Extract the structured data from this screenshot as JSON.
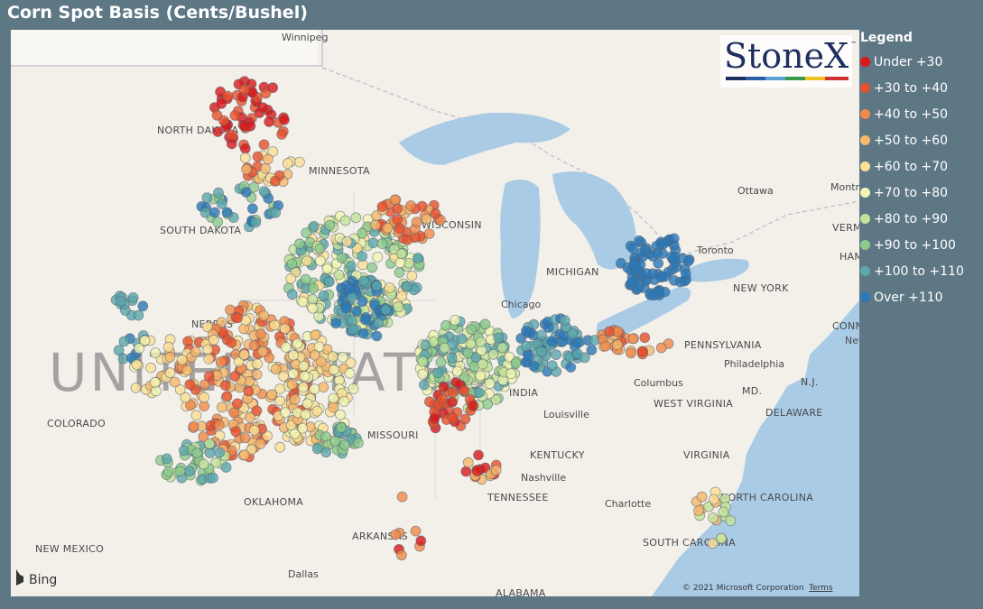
{
  "title": "Corn Spot Basis (Cents/Bushel)",
  "legend": {
    "title": "Legend",
    "items": [
      {
        "label": "Under +30",
        "color": "#d7191c"
      },
      {
        "label": "+30 to +40",
        "color": "#e8502c"
      },
      {
        "label": "+40 to +50",
        "color": "#f08a4b"
      },
      {
        "label": "+50 to +60",
        "color": "#f6b86b"
      },
      {
        "label": "+60 to +70",
        "color": "#fbe096"
      },
      {
        "label": "+70 to +80",
        "color": "#f3f5b2"
      },
      {
        "label": "+80 to +90",
        "color": "#c4e39a"
      },
      {
        "label": "+90 to +100",
        "color": "#8ccb8c"
      },
      {
        "label": "+100 to +110",
        "color": "#5ba8ac"
      },
      {
        "label": "Over +110",
        "color": "#2b78b8"
      }
    ]
  },
  "logo": {
    "text": "StoneX",
    "trademark": "™"
  },
  "map_labels": [
    "Winnipeg",
    "NORTH DAKOTA",
    "MINNESOTA",
    "SOUTH DAKOTA",
    "WISCONSIN",
    "MICHIGAN",
    "Ottawa",
    "Montr",
    "VERMO",
    "HAM",
    "Toronto",
    "NEW YORK",
    "Chicago",
    "NEBRAS",
    "UNITED STATES",
    "CONN",
    "New York",
    "PENNSYLVANIA",
    "Philadelphia",
    "N.J.",
    "MD.",
    "DELAWARE",
    "Columbus",
    "INDIA",
    "WEST VIRGINIA",
    "COLORADO",
    "MISSOURI",
    "Louisville",
    "KENTUCKY",
    "VIRGINIA",
    "Nashville",
    "TENNESSEE",
    "OKLAHOMA",
    "Charlotte",
    "NORTH CAROLINA",
    "ARKANSAS",
    "SOUTH CAROLINA",
    "NEW MEXICO",
    "Dallas",
    "ALABAMA"
  ],
  "attribution": {
    "provider": "Bing",
    "copyright": "© 2021 Microsoft Corporation",
    "terms": "Terms"
  }
}
